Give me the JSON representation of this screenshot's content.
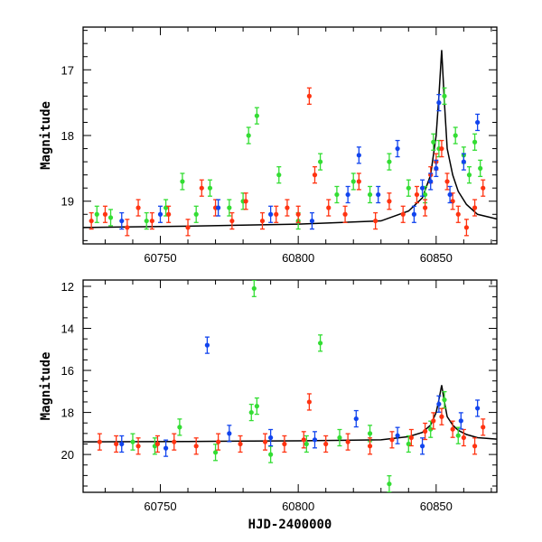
{
  "chart_data": [
    {
      "type": "scatter",
      "xlabel": "",
      "ylabel": "Magnitude",
      "xlim": [
        60722,
        60872
      ],
      "ylim": [
        19.65,
        16.35
      ],
      "y_inverted": true,
      "xticks": [
        60750,
        60800,
        60850
      ],
      "yticks": [
        17,
        18,
        19
      ],
      "tick_labels_x": [
        "60750",
        "60800",
        "60850"
      ],
      "tick_labels_y": [
        "17",
        "18",
        "19"
      ],
      "grid": false,
      "colors": {
        "green": "#33dd33",
        "red": "#ff3311",
        "blue": "#1144ee",
        "model": "#000000"
      },
      "series": [
        {
          "color": "green",
          "x": [
            60727,
            60732,
            60745,
            60752,
            60758,
            60763,
            60768,
            60775,
            60780,
            60782,
            60785,
            60793,
            60800,
            60808,
            60814,
            60820,
            60826,
            60833,
            60840,
            60846,
            60849,
            60851,
            60853,
            60857,
            60860,
            60862,
            60864,
            60866
          ],
          "y": [
            19.2,
            19.25,
            19.3,
            19.1,
            18.7,
            19.2,
            18.8,
            19.1,
            19.0,
            18.0,
            17.7,
            18.6,
            19.3,
            18.4,
            18.9,
            18.7,
            18.9,
            18.4,
            18.8,
            18.9,
            18.1,
            18.2,
            17.4,
            18.0,
            18.3,
            18.6,
            18.1,
            18.5
          ]
        },
        {
          "color": "red",
          "x": [
            60725,
            60730,
            60738,
            60742,
            60747,
            60753,
            60760,
            60765,
            60770,
            60776,
            60781,
            60787,
            60792,
            60796,
            60800,
            60804,
            60806,
            60811,
            60817,
            60822,
            60828,
            60833,
            60838,
            60843,
            60846,
            60848,
            60850,
            60852,
            60854,
            60856,
            60858,
            60861,
            60864,
            60867
          ],
          "y": [
            19.3,
            19.2,
            19.4,
            19.1,
            19.3,
            19.2,
            19.4,
            18.8,
            19.1,
            19.3,
            19.0,
            19.3,
            19.2,
            19.1,
            19.2,
            17.4,
            18.6,
            19.1,
            19.2,
            18.7,
            19.3,
            19.0,
            19.2,
            18.9,
            19.1,
            18.6,
            18.4,
            18.2,
            18.7,
            19.0,
            19.2,
            19.4,
            19.1,
            18.8
          ]
        },
        {
          "color": "blue",
          "x": [
            60736,
            60750,
            60771,
            60790,
            60805,
            60818,
            60822,
            60829,
            60836,
            60842,
            60845,
            60848,
            60850,
            60851,
            60855,
            60860,
            60865
          ],
          "y": [
            19.3,
            19.2,
            19.1,
            19.2,
            19.3,
            18.9,
            18.3,
            18.9,
            18.2,
            19.2,
            18.8,
            18.7,
            18.5,
            17.5,
            18.9,
            18.4,
            17.8
          ]
        }
      ],
      "model_curve": {
        "x": [
          60722,
          60760,
          60800,
          60830,
          60840,
          60845,
          60848,
          60850,
          60851,
          60852,
          60853,
          60854,
          60856,
          60858,
          60861,
          60865,
          60872
        ],
        "y": [
          19.4,
          19.38,
          19.35,
          19.3,
          19.15,
          18.95,
          18.6,
          18.0,
          17.4,
          16.7,
          17.5,
          18.2,
          18.6,
          18.85,
          19.05,
          19.2,
          19.27
        ]
      }
    },
    {
      "type": "scatter",
      "xlabel": "HJD-2400000",
      "ylabel": "Magnitude",
      "xlim": [
        60722,
        60872
      ],
      "ylim": [
        21.8,
        11.7
      ],
      "y_inverted": true,
      "xticks": [
        60750,
        60800,
        60850
      ],
      "yticks": [
        12,
        14,
        16,
        18,
        20
      ],
      "tick_labels_x": [
        "60750",
        "60800",
        "60850"
      ],
      "tick_labels_y": [
        "12",
        "14",
        "16",
        "18",
        "20"
      ],
      "grid": false,
      "colors": {
        "green": "#33dd33",
        "red": "#ff3311",
        "blue": "#1144ee",
        "model": "#000000"
      },
      "series": [
        {
          "color": "green",
          "x": [
            60740,
            60748,
            60757,
            60770,
            60783,
            60784,
            60785,
            60790,
            60803,
            60808,
            60815,
            60826,
            60833,
            60840,
            60848,
            60853,
            60858
          ],
          "y": [
            19.4,
            19.6,
            18.7,
            19.9,
            18.0,
            12.1,
            17.7,
            20.0,
            19.5,
            14.7,
            19.2,
            19.0,
            21.4,
            19.5,
            18.8,
            17.4,
            19.1
          ]
        },
        {
          "color": "red",
          "x": [
            60728,
            60734,
            60742,
            60749,
            60755,
            60763,
            60771,
            60779,
            60788,
            60795,
            60802,
            60804,
            60810,
            60818,
            60826,
            60834,
            60841,
            60846,
            60849,
            60852,
            60856,
            60860,
            60864,
            60867
          ],
          "y": [
            19.4,
            19.5,
            19.6,
            19.5,
            19.4,
            19.6,
            19.4,
            19.5,
            19.4,
            19.5,
            19.3,
            17.5,
            19.5,
            19.4,
            19.6,
            19.3,
            19.2,
            18.9,
            18.4,
            18.2,
            18.8,
            19.2,
            19.6,
            18.7
          ]
        },
        {
          "color": "blue",
          "x": [
            60736,
            60752,
            60767,
            60775,
            60790,
            60806,
            60821,
            60836,
            60845,
            60851,
            60859,
            60865
          ],
          "y": [
            19.5,
            19.7,
            14.8,
            19.0,
            19.2,
            19.3,
            18.3,
            19.1,
            19.6,
            17.6,
            18.4,
            17.8
          ]
        }
      ],
      "model_curve": {
        "x": [
          60722,
          60760,
          60800,
          60830,
          60840,
          60845,
          60848,
          60850,
          60851,
          60852,
          60853,
          60854,
          60856,
          60858,
          60861,
          60865,
          60872
        ],
        "y": [
          19.4,
          19.38,
          19.35,
          19.3,
          19.15,
          18.95,
          18.6,
          18.0,
          17.4,
          16.7,
          17.5,
          18.2,
          18.6,
          18.85,
          19.05,
          19.2,
          19.27
        ]
      }
    }
  ]
}
